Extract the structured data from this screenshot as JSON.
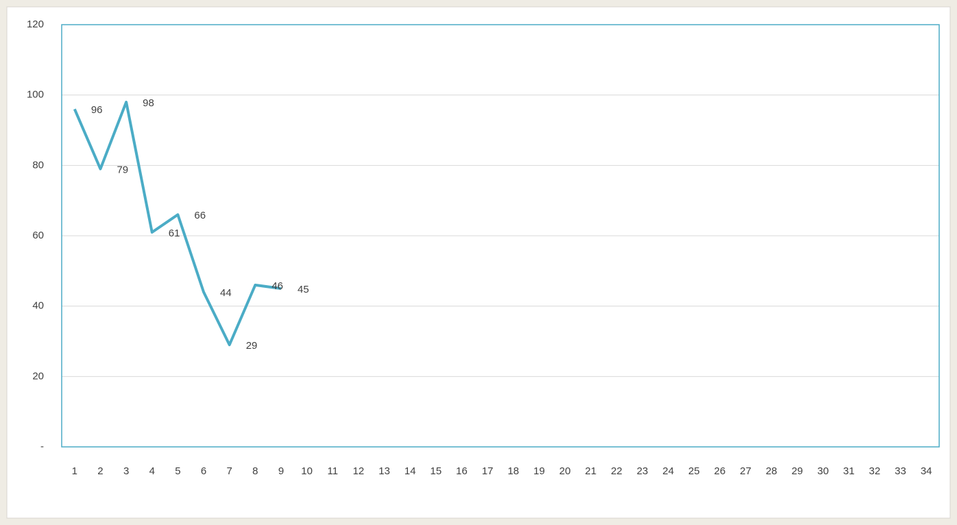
{
  "chart_data": {
    "type": "line",
    "categories": [
      "1",
      "2",
      "3",
      "4",
      "5",
      "6",
      "7",
      "8",
      "9",
      "10",
      "11",
      "12",
      "13",
      "14",
      "15",
      "16",
      "17",
      "18",
      "19",
      "20",
      "21",
      "22",
      "23",
      "24",
      "25",
      "26",
      "27",
      "28",
      "29",
      "30",
      "31",
      "32",
      "33",
      "34"
    ],
    "values": [
      96,
      79,
      98,
      61,
      66,
      44,
      29,
      46,
      45,
      null,
      null,
      null,
      null,
      null,
      null,
      null,
      null,
      null,
      null,
      null,
      null,
      null,
      null,
      null,
      null,
      null,
      null,
      null,
      null,
      null,
      null,
      null,
      null,
      null
    ],
    "color": "#4bacc6",
    "ylim": [
      0,
      120
    ],
    "yticks": [
      {
        "value": 0,
        "label": "-"
      },
      20,
      40,
      60,
      80,
      100,
      120
    ],
    "grid": true,
    "data_labels": true
  }
}
